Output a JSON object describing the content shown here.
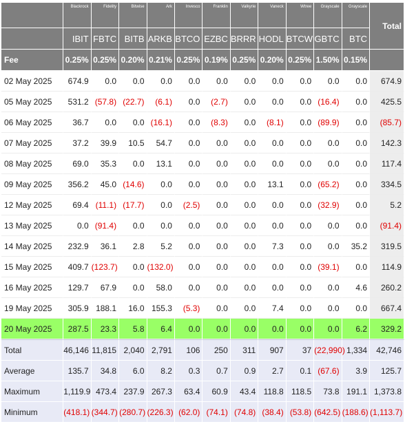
{
  "chart_data": {
    "type": "table",
    "columns": [
      {
        "issuer": "Blackrock",
        "ticker": "IBIT",
        "fee": "0.25%"
      },
      {
        "issuer": "Fidelity",
        "ticker": "FBTC",
        "fee": "0.25%"
      },
      {
        "issuer": "Bitwise",
        "ticker": "BITB",
        "fee": "0.20%"
      },
      {
        "issuer": "Ark",
        "ticker": "ARKB",
        "fee": "0.21%"
      },
      {
        "issuer": "Invesco",
        "ticker": "BTCO",
        "fee": "0.25%"
      },
      {
        "issuer": "Franklin",
        "ticker": "EZBC",
        "fee": "0.19%"
      },
      {
        "issuer": "Valkyrie",
        "ticker": "BRRR",
        "fee": "0.25%"
      },
      {
        "issuer": "Vaneck",
        "ticker": "HODL",
        "fee": "0.20%"
      },
      {
        "issuer": "Wtree",
        "ticker": "BTCW",
        "fee": "0.25%"
      },
      {
        "issuer": "Grayscale",
        "ticker": "GBTC",
        "fee": "1.50%"
      },
      {
        "issuer": "Grayscale",
        "ticker": "BTC",
        "fee": "0.15%"
      }
    ],
    "total_label": "Total",
    "fee_label": "Fee",
    "rows": [
      {
        "date": "02 May 2025",
        "values": [
          "674.9",
          "0.0",
          "0.0",
          "0.0",
          "0.0",
          "0.0",
          "0.0",
          "0.0",
          "0.0",
          "0.0",
          "0.0"
        ],
        "total": "674.9"
      },
      {
        "date": "05 May 2025",
        "values": [
          "531.2",
          "(57.8)",
          "(22.7)",
          "(6.1)",
          "0.0",
          "(2.7)",
          "0.0",
          "0.0",
          "0.0",
          "(16.4)",
          "0.0"
        ],
        "total": "425.5"
      },
      {
        "date": "06 May 2025",
        "values": [
          "36.7",
          "0.0",
          "0.0",
          "(16.1)",
          "0.0",
          "(8.3)",
          "0.0",
          "(8.1)",
          "0.0",
          "(89.9)",
          "0.0"
        ],
        "total": "(85.7)"
      },
      {
        "date": "07 May 2025",
        "values": [
          "37.2",
          "39.9",
          "10.5",
          "54.7",
          "0.0",
          "0.0",
          "0.0",
          "0.0",
          "0.0",
          "0.0",
          "0.0"
        ],
        "total": "142.3"
      },
      {
        "date": "08 May 2025",
        "values": [
          "69.0",
          "35.3",
          "0.0",
          "13.1",
          "0.0",
          "0.0",
          "0.0",
          "0.0",
          "0.0",
          "0.0",
          "0.0"
        ],
        "total": "117.4"
      },
      {
        "date": "09 May 2025",
        "values": [
          "356.2",
          "45.0",
          "(14.6)",
          "0.0",
          "0.0",
          "0.0",
          "0.0",
          "13.1",
          "0.0",
          "(65.2)",
          "0.0"
        ],
        "total": "334.5"
      },
      {
        "date": "12 May 2025",
        "values": [
          "69.4",
          "(11.1)",
          "(17.7)",
          "0.0",
          "(2.5)",
          "0.0",
          "0.0",
          "0.0",
          "0.0",
          "(32.9)",
          "0.0"
        ],
        "total": "5.2"
      },
      {
        "date": "13 May 2025",
        "values": [
          "0.0",
          "(91.4)",
          "0.0",
          "0.0",
          "0.0",
          "0.0",
          "0.0",
          "0.0",
          "0.0",
          "0.0",
          "0.0"
        ],
        "total": "(91.4)"
      },
      {
        "date": "14 May 2025",
        "values": [
          "232.9",
          "36.1",
          "2.8",
          "5.2",
          "0.0",
          "0.0",
          "0.0",
          "7.3",
          "0.0",
          "0.0",
          "35.2"
        ],
        "total": "319.5"
      },
      {
        "date": "15 May 2025",
        "values": [
          "409.7",
          "(123.7)",
          "0.0",
          "(132.0)",
          "0.0",
          "0.0",
          "0.0",
          "0.0",
          "0.0",
          "(39.1)",
          "0.0"
        ],
        "total": "114.9"
      },
      {
        "date": "16 May 2025",
        "values": [
          "129.7",
          "67.9",
          "0.0",
          "58.0",
          "0.0",
          "0.0",
          "0.0",
          "0.0",
          "0.0",
          "0.0",
          "4.6"
        ],
        "total": "260.2"
      },
      {
        "date": "19 May 2025",
        "values": [
          "305.9",
          "188.1",
          "16.0",
          "155.3",
          "(5.3)",
          "0.0",
          "0.0",
          "7.4",
          "0.0",
          "0.0",
          "0.0"
        ],
        "total": "667.4"
      },
      {
        "date": "20 May 2025",
        "values": [
          "287.5",
          "23.3",
          "5.8",
          "6.4",
          "0.0",
          "0.0",
          "0.0",
          "0.0",
          "0.0",
          "0.0",
          "6.2"
        ],
        "total": "329.2",
        "highlight": true
      }
    ],
    "summary": [
      {
        "label": "Total",
        "values": [
          "46,146",
          "11,815",
          "2,040",
          "2,791",
          "106",
          "250",
          "311",
          "907",
          "37",
          "(22,990)",
          "1,334"
        ],
        "total": "42,746"
      },
      {
        "label": "Average",
        "values": [
          "135.7",
          "34.8",
          "6.0",
          "8.2",
          "0.3",
          "0.7",
          "0.9",
          "2.7",
          "0.1",
          "(67.6)",
          "3.9"
        ],
        "total": "125.7"
      },
      {
        "label": "Maximum",
        "values": [
          "1,119.9",
          "473.4",
          "237.9",
          "267.3",
          "63.4",
          "60.9",
          "43.4",
          "118.8",
          "118.5",
          "73.8",
          "191.1"
        ],
        "total": "1,373.8"
      },
      {
        "label": "Minimum",
        "values": [
          "(418.1)",
          "(344.7)",
          "(280.7)",
          "(226.3)",
          "(62.0)",
          "(74.1)",
          "(74.8)",
          "(38.4)",
          "(53.8)",
          "(642.5)",
          "(188.6)"
        ],
        "total": "(1,113.7)"
      }
    ],
    "colors": {
      "header_bg": "#7f7f7f",
      "negative": "#e00000",
      "highlight": "#99ff66",
      "summary_bg": "#e8eaf6",
      "total_col_bg": "#ededed"
    }
  }
}
